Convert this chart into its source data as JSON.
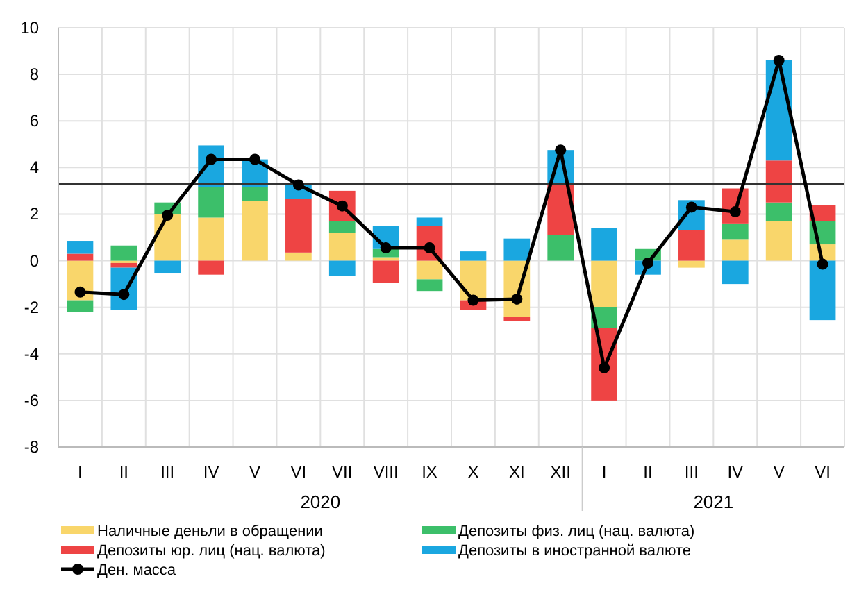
{
  "chart_data": {
    "type": "bar",
    "stacked": true,
    "categories": [
      "I",
      "II",
      "III",
      "IV",
      "V",
      "VI",
      "VII",
      "VIII",
      "IX",
      "X",
      "XI",
      "XII",
      "I",
      "II",
      "III",
      "IV",
      "V",
      "VI"
    ],
    "series": [
      {
        "name": "Наличные деньли в обращении",
        "color": "#f9d66b",
        "values": [
          -1.7,
          -0.1,
          2.0,
          1.85,
          2.55,
          0.35,
          1.2,
          0.15,
          -0.8,
          -1.7,
          -2.4,
          0,
          -2.0,
          0,
          -0.3,
          0.9,
          1.7,
          0.7
        ]
      },
      {
        "name": "Депозиты физ. лиц (нац. валюта)",
        "color": "#3cbf6a",
        "values": [
          -0.5,
          0.65,
          0.5,
          1.3,
          0.6,
          0,
          0.5,
          0.35,
          -0.5,
          0,
          0,
          1.1,
          -0.9,
          0.5,
          0,
          0.7,
          0.8,
          1.0
        ]
      },
      {
        "name": "Депозиты юр. лиц (нац. валюта)",
        "color": "#ee4444",
        "values": [
          0.3,
          -0.2,
          0,
          -0.6,
          0,
          2.3,
          1.3,
          -0.95,
          1.5,
          -0.4,
          -0.2,
          2.2,
          -3.1,
          0,
          1.3,
          1.5,
          1.8,
          0.7
        ]
      },
      {
        "name": "Депозиты в иностранной валюте",
        "color": "#1aa7e0",
        "values": [
          0.55,
          -1.8,
          -0.55,
          1.8,
          1.2,
          0.6,
          -0.65,
          1.0,
          0.35,
          0.4,
          0.95,
          1.45,
          1.4,
          -0.6,
          1.3,
          -1.0,
          4.3,
          -2.55
        ]
      },
      {
        "name": "Ден.  масса",
        "type": "line",
        "color": "#000000",
        "marker": "circle",
        "values": [
          -1.35,
          -1.45,
          1.95,
          4.35,
          4.35,
          3.25,
          2.35,
          0.55,
          0.55,
          -1.7,
          -1.65,
          4.75,
          -4.6,
          -0.1,
          2.3,
          2.1,
          8.6,
          -0.15
        ]
      }
    ],
    "ylim": [
      -8,
      10
    ],
    "yticks": [
      -8,
      -6,
      -4,
      -2,
      0,
      2,
      4,
      6,
      8,
      10
    ],
    "grid": true,
    "legend": "bottom",
    "ref_lines": [
      {
        "axis": "y",
        "value": 3.3,
        "color": "#333333"
      }
    ],
    "annotations": [
      "2020",
      "2021"
    ]
  }
}
